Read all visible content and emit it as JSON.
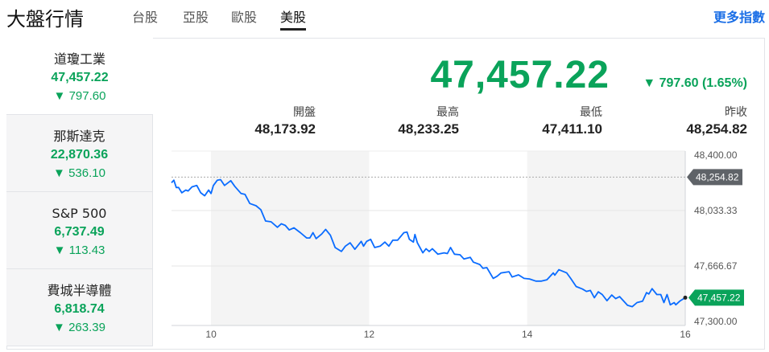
{
  "header": {
    "title": "大盤行情",
    "tabs": [
      {
        "label": "台股"
      },
      {
        "label": "亞股"
      },
      {
        "label": "歐股"
      },
      {
        "label": "美股",
        "active": true
      }
    ],
    "more_link": "更多指數"
  },
  "indices": [
    {
      "name": "道瓊工業",
      "price": "47,457.22",
      "change": "797.60",
      "selected": true
    },
    {
      "name": "那斯達克",
      "price": "22,870.36",
      "change": "536.10"
    },
    {
      "name": "S&P 500",
      "price": "6,737.49",
      "change": "113.43"
    },
    {
      "name": "費城半導體",
      "price": "6,818.74",
      "change": "263.39"
    }
  ],
  "quote": {
    "price": "47,457.22",
    "change": "797.60 (1.65%)",
    "direction": "down",
    "stats": [
      {
        "label": "開盤",
        "value": "48,173.92"
      },
      {
        "label": "最高",
        "value": "48,233.25"
      },
      {
        "label": "最低",
        "value": "47,411.10"
      },
      {
        "label": "昨收",
        "value": "48,254.82"
      }
    ]
  },
  "colors": {
    "down": "#0aa35a",
    "line": "#0a6cff",
    "link": "#1a6ee6",
    "prev_close_tag": "#5f6368"
  },
  "chart_data": {
    "type": "line",
    "xlabel": "",
    "ylabel": "",
    "xlim": [
      9.5,
      16
    ],
    "ylim": [
      47300,
      48400
    ],
    "x_ticks": [
      "10",
      "12",
      "14",
      "16"
    ],
    "y_ticks": [
      "48,400.00",
      "48,033.33",
      "47,666.67",
      "47,300.00"
    ],
    "grid": true,
    "shaded_bands": [
      [
        10,
        12
      ],
      [
        14,
        16
      ]
    ],
    "prev_close": {
      "value": 48254.82,
      "label": "48,254.82"
    },
    "last": {
      "value": 47457.22,
      "label": "47,457.22"
    },
    "series": [
      {
        "points": [
          [
            9.5,
            48217
          ],
          [
            9.53,
            48234
          ],
          [
            9.56,
            48186
          ],
          [
            9.59,
            48186
          ],
          [
            9.63,
            48151
          ],
          [
            9.68,
            48169
          ],
          [
            9.71,
            48163
          ],
          [
            9.76,
            48190
          ],
          [
            9.82,
            48199
          ],
          [
            9.87,
            48151
          ],
          [
            9.92,
            48131
          ],
          [
            9.97,
            48169
          ],
          [
            10.0,
            48146
          ],
          [
            10.03,
            48199
          ],
          [
            10.08,
            48234
          ],
          [
            10.12,
            48238
          ],
          [
            10.17,
            48199
          ],
          [
            10.25,
            48231
          ],
          [
            10.3,
            48194
          ],
          [
            10.38,
            48146
          ],
          [
            10.43,
            48140
          ],
          [
            10.49,
            48080
          ],
          [
            10.57,
            48065
          ],
          [
            10.63,
            48039
          ],
          [
            10.69,
            47964
          ],
          [
            10.76,
            47959
          ],
          [
            10.84,
            47923
          ],
          [
            10.89,
            47946
          ],
          [
            10.94,
            47935
          ],
          [
            10.99,
            47905
          ],
          [
            11.05,
            47919
          ],
          [
            11.13,
            47887
          ],
          [
            11.21,
            47852
          ],
          [
            11.25,
            47852
          ],
          [
            11.29,
            47887
          ],
          [
            11.33,
            47848
          ],
          [
            11.4,
            47878
          ],
          [
            11.45,
            47909
          ],
          [
            11.51,
            47870
          ],
          [
            11.57,
            47789
          ],
          [
            11.65,
            47763
          ],
          [
            11.7,
            47798
          ],
          [
            11.76,
            47820
          ],
          [
            11.82,
            47777
          ],
          [
            11.9,
            47830
          ],
          [
            11.93,
            47798
          ],
          [
            11.97,
            47830
          ],
          [
            12.02,
            47843
          ],
          [
            12.07,
            47789
          ],
          [
            12.14,
            47798
          ],
          [
            12.2,
            47825
          ],
          [
            12.25,
            47798
          ],
          [
            12.3,
            47837
          ],
          [
            12.36,
            47837
          ],
          [
            12.44,
            47887
          ],
          [
            12.48,
            47891
          ],
          [
            12.51,
            47843
          ],
          [
            12.56,
            47825
          ],
          [
            12.58,
            47875
          ],
          [
            12.61,
            47820
          ],
          [
            12.68,
            47754
          ],
          [
            12.72,
            47781
          ],
          [
            12.76,
            47763
          ],
          [
            12.8,
            47781
          ],
          [
            12.87,
            47745
          ],
          [
            12.95,
            47754
          ],
          [
            12.99,
            47749
          ],
          [
            13.03,
            47789
          ],
          [
            13.08,
            47745
          ],
          [
            13.15,
            47741
          ],
          [
            13.2,
            47713
          ],
          [
            13.28,
            47724
          ],
          [
            13.32,
            47692
          ],
          [
            13.4,
            47677
          ],
          [
            13.44,
            47652
          ],
          [
            13.49,
            47656
          ],
          [
            13.57,
            47585
          ],
          [
            13.62,
            47599
          ],
          [
            13.67,
            47621
          ],
          [
            13.77,
            47629
          ],
          [
            13.81,
            47594
          ],
          [
            13.89,
            47608
          ],
          [
            13.96,
            47585
          ],
          [
            14.03,
            47581
          ],
          [
            14.11,
            47567
          ],
          [
            14.18,
            47567
          ],
          [
            14.25,
            47576
          ],
          [
            14.33,
            47621
          ],
          [
            14.35,
            47606
          ],
          [
            14.4,
            47642
          ],
          [
            14.5,
            47621
          ],
          [
            14.55,
            47585
          ],
          [
            14.62,
            47531
          ],
          [
            14.7,
            47514
          ],
          [
            14.75,
            47499
          ],
          [
            14.8,
            47505
          ],
          [
            14.85,
            47457
          ],
          [
            14.9,
            47496
          ],
          [
            14.95,
            47478
          ],
          [
            15.01,
            47437
          ],
          [
            15.07,
            47475
          ],
          [
            15.12,
            47451
          ],
          [
            15.17,
            47464
          ],
          [
            15.27,
            47407
          ],
          [
            15.33,
            47398
          ],
          [
            15.39,
            47425
          ],
          [
            15.46,
            47434
          ],
          [
            15.51,
            47491
          ],
          [
            15.54,
            47482
          ],
          [
            15.58,
            47517
          ],
          [
            15.64,
            47478
          ],
          [
            15.69,
            47478
          ],
          [
            15.73,
            47425
          ],
          [
            15.77,
            47478
          ],
          [
            15.81,
            47410
          ],
          [
            15.86,
            47425
          ],
          [
            15.88,
            47410
          ],
          [
            15.93,
            47434
          ],
          [
            16.0,
            47457.22
          ]
        ]
      }
    ]
  }
}
